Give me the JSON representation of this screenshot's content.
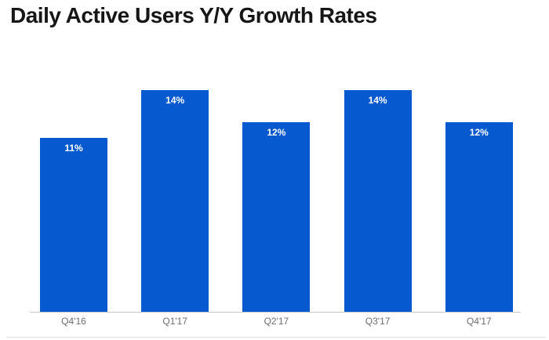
{
  "title": "Daily Active Users Y/Y Growth Rates",
  "chart_data": {
    "type": "bar",
    "title": "Daily Active Users Y/Y Growth Rates",
    "categories": [
      "Q4'16",
      "Q1'17",
      "Q2'17",
      "Q3'17",
      "Q4'17"
    ],
    "values": [
      11,
      14,
      12,
      14,
      12
    ],
    "value_labels": [
      "11%",
      "14%",
      "12%",
      "14%",
      "12%"
    ],
    "xlabel": "",
    "ylabel": "",
    "ylim": [
      0,
      15
    ],
    "grid": false,
    "legend": null,
    "value_label_position": "inside-top",
    "bar_color": "#0659ce",
    "value_label_color": "#ffffff",
    "tick_label_color": "#6d6d6d",
    "axis_line_color": "#cacaca",
    "title_color": "#161616"
  }
}
